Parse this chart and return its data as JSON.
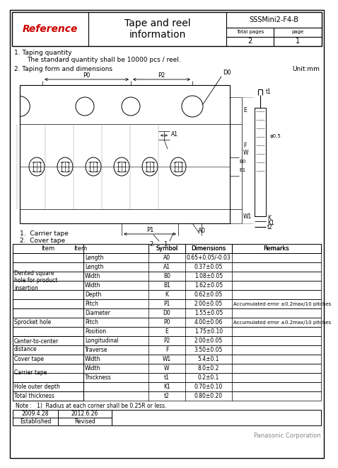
{
  "title_red": "Reference",
  "title_main": "Tape and reel\ninformation",
  "part_number": "SSSMini2-F4-B",
  "total_pages_label": "Total pages",
  "page_label": "page",
  "total_pages": "2",
  "page": "1",
  "section1_title": "1. Taping quantity",
  "section1_text": "    The standard quantity shall be 10000 pcs / reel.",
  "section2_title": "2. Taping form and dimensions",
  "unit_label": "Unit:mm",
  "legend1": "1.  Carrier tape",
  "legend2": "2.  Cover tape",
  "note": "Note :   1)  Radius at each corner shall be 0.25R or less.",
  "date1": "2009.4.28",
  "date2": "2012.6.26",
  "established": "Established",
  "revised": "Revised",
  "company": "Panasonic Corporation",
  "bg_color": "#ffffff",
  "red_color": "#cc0000",
  "table_rows": [
    [
      "Dented square\nhole for product\ninsertion",
      "Length",
      "A0",
      "0.65+0.05/-0.03",
      ""
    ],
    [
      "",
      "Length",
      "A1",
      "0.37±0.05",
      ""
    ],
    [
      "",
      "Width",
      "B0",
      "1.08±0.05",
      ""
    ],
    [
      "",
      "Width",
      "B1",
      "1.62±0.05",
      ""
    ],
    [
      "",
      "Depth",
      "K",
      "0.62±0.05",
      ""
    ],
    [
      "",
      "Pitch",
      "P1",
      "2.00±0.05",
      "Accumulated error ±0.2max/10 pitches"
    ],
    [
      "Sprocket hole",
      "Diameter",
      "D0",
      "1.55±0.05",
      ""
    ],
    [
      "",
      "Pitch",
      "P0",
      "4.00±0.06",
      "Accumulated error ±0.2max/10 pitches"
    ],
    [
      "",
      "Position",
      "E",
      "1.75±0.10",
      ""
    ],
    [
      "Center-to-center\ndistance",
      "Longitudinal",
      "P2",
      "2.00±0.05",
      ""
    ],
    [
      "",
      "Traverse",
      "F",
      "3.50±0.05",
      ""
    ],
    [
      "Cover tape",
      "Width",
      "W1",
      "5.4±0.1",
      ""
    ],
    [
      "Carrier tape",
      "Width",
      "W",
      "8.0±0.2",
      ""
    ],
    [
      "",
      "Thickness",
      "t1",
      "0.2±0.1",
      ""
    ],
    [
      "Hole outer depth",
      "",
      "K1",
      "0.70±0.10",
      ""
    ],
    [
      "Total thickness",
      "",
      "t2",
      "0.80±0.20",
      ""
    ]
  ],
  "left_groups": [
    [
      0,
      5,
      "Dented square\nhole for product\ninsertion"
    ],
    [
      6,
      8,
      "Sprocket hole"
    ],
    [
      9,
      10,
      "Center-to-center\ndistance"
    ],
    [
      11,
      11,
      "Cover tape"
    ],
    [
      12,
      13,
      "Carrier tape"
    ],
    [
      14,
      14,
      "Hole outer depth"
    ],
    [
      15,
      15,
      "Total thickness"
    ]
  ]
}
